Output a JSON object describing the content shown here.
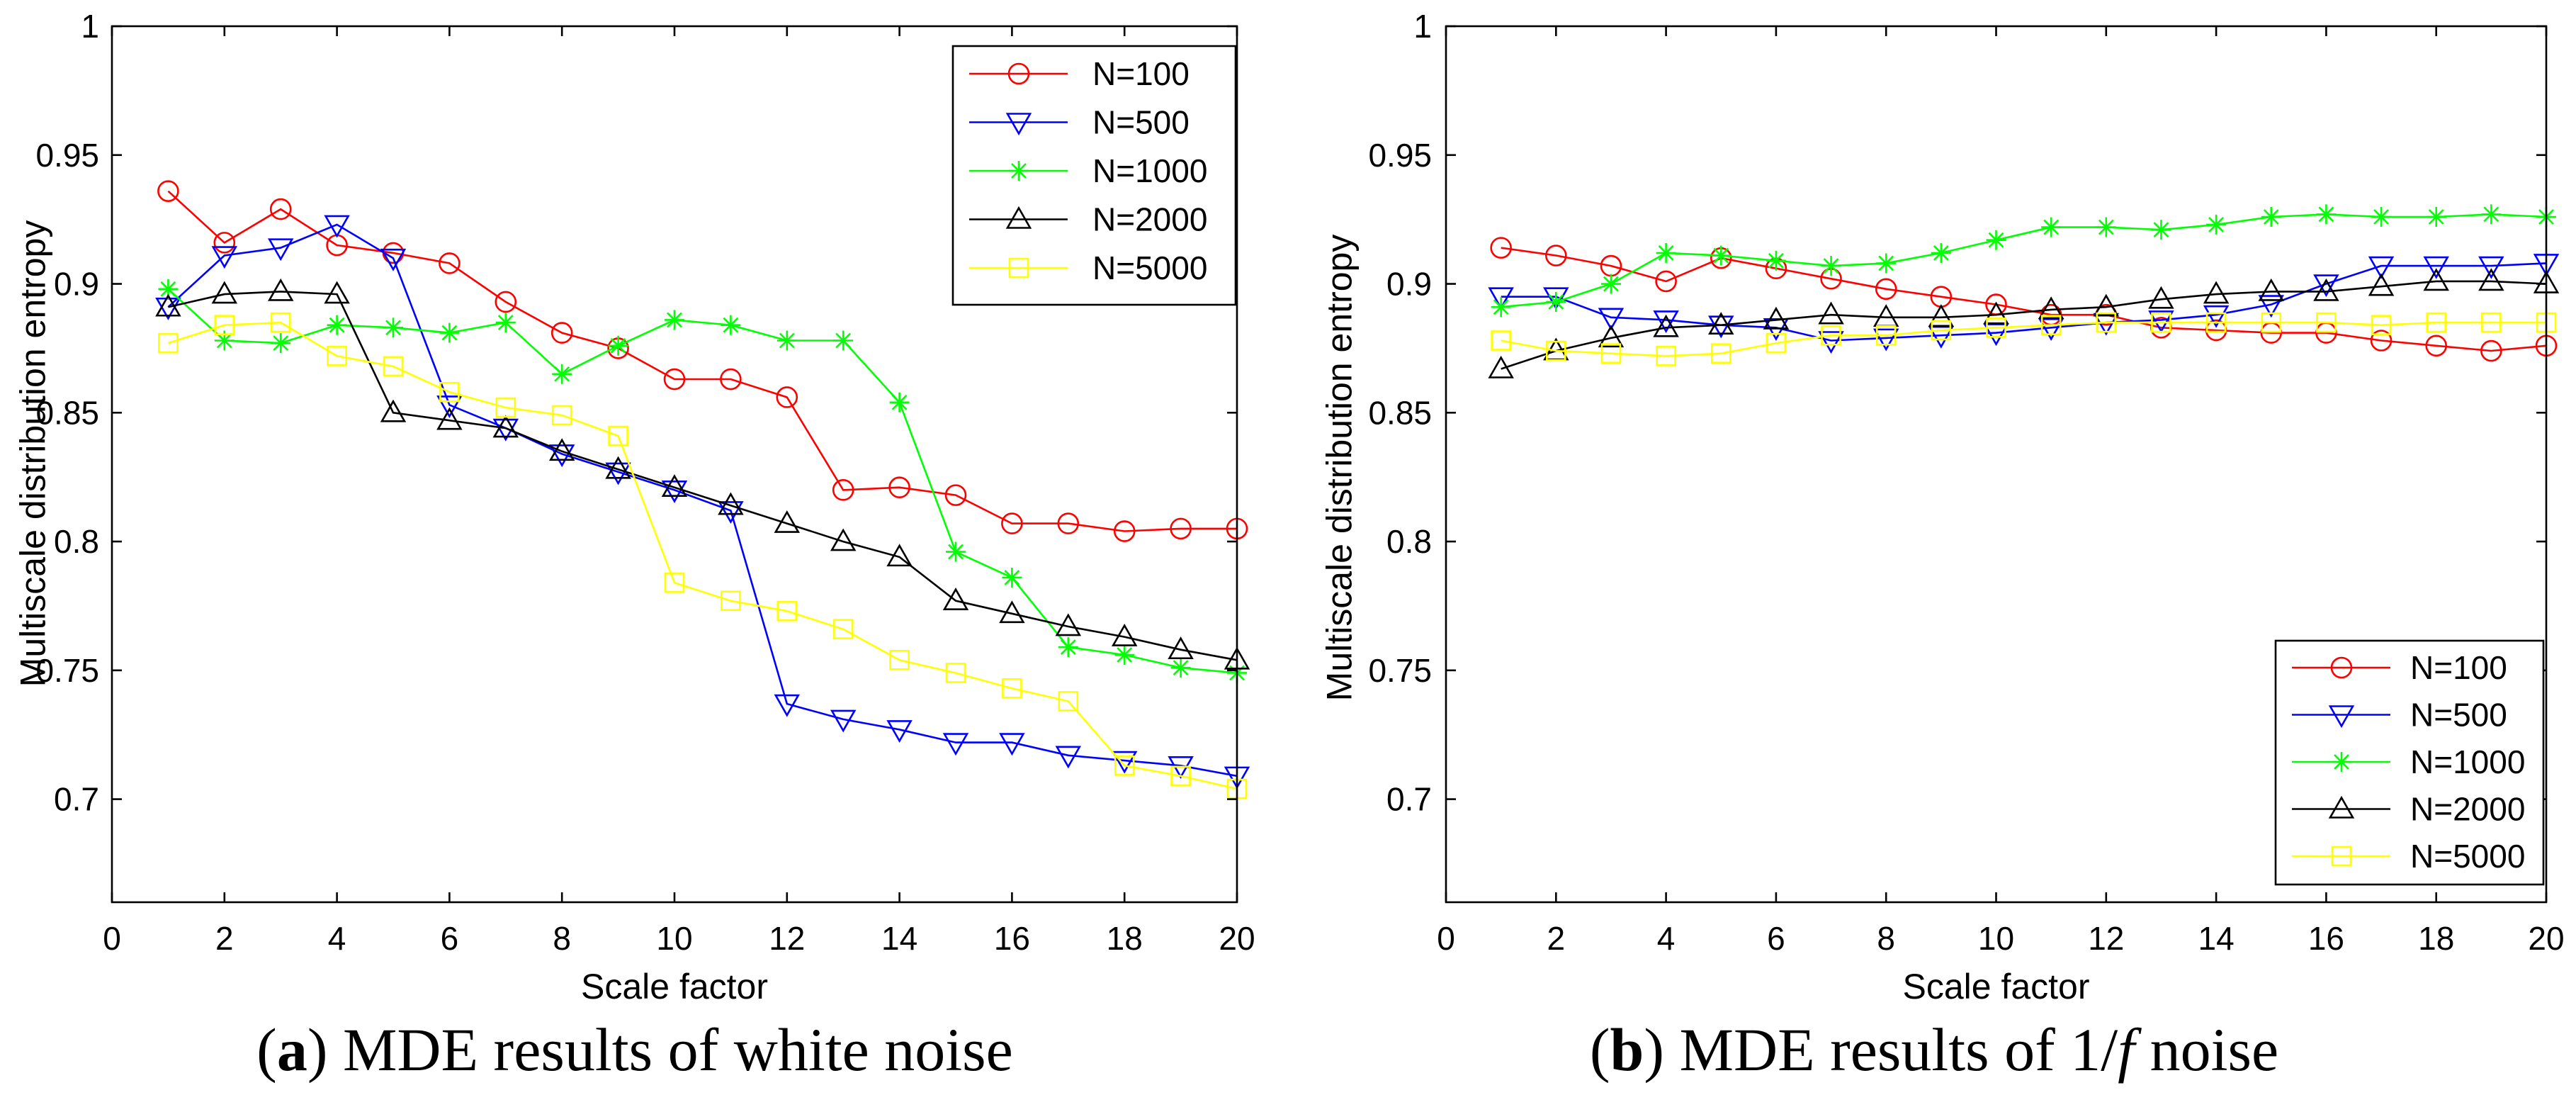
{
  "chart_data": [
    {
      "type": "line",
      "xlabel": "Scale factor",
      "ylabel": "Multiscale distribution entropy",
      "xlim": [
        0,
        20
      ],
      "ylim": [
        0.66,
        1
      ],
      "xticks": [
        0,
        2,
        4,
        6,
        8,
        10,
        12,
        14,
        16,
        18,
        20
      ],
      "xtick_labels": [
        "0",
        "2",
        "4",
        "6",
        "8",
        "10",
        "12",
        "14",
        "16",
        "18",
        "20"
      ],
      "yticks": [
        0.7,
        0.75,
        0.8,
        0.85,
        0.9,
        0.95,
        1
      ],
      "ytick_labels": [
        "0.7",
        "0.75",
        "0.8",
        "0.85",
        "0.9",
        "0.95",
        "1"
      ],
      "grid": false,
      "legend_position": "top-right",
      "x": [
        1,
        2,
        3,
        4,
        5,
        6,
        7,
        8,
        9,
        10,
        11,
        12,
        13,
        14,
        15,
        16,
        17,
        18,
        19,
        20
      ],
      "series": [
        {
          "name": "N=100",
          "color": "#ff0000",
          "marker": "circle",
          "values": [
            0.936,
            0.916,
            0.929,
            0.915,
            0.912,
            0.908,
            0.893,
            0.881,
            0.875,
            0.863,
            0.863,
            0.856,
            0.82,
            0.821,
            0.818,
            0.807,
            0.807,
            0.804,
            0.805,
            0.805
          ]
        },
        {
          "name": "N=500",
          "color": "#0000ff",
          "marker": "triangle-down",
          "values": [
            0.891,
            0.911,
            0.914,
            0.923,
            0.91,
            0.853,
            0.844,
            0.834,
            0.827,
            0.82,
            0.812,
            0.737,
            0.731,
            0.727,
            0.722,
            0.722,
            0.717,
            0.715,
            0.713,
            0.709
          ]
        },
        {
          "name": "N=1000",
          "color": "#00ff00",
          "marker": "asterisk",
          "values": [
            0.898,
            0.878,
            0.877,
            0.884,
            0.883,
            0.881,
            0.885,
            0.865,
            0.876,
            0.886,
            0.884,
            0.878,
            0.878,
            0.854,
            0.796,
            0.786,
            0.759,
            0.756,
            0.751,
            0.749
          ]
        },
        {
          "name": "N=2000",
          "color": "#000000",
          "marker": "triangle-up",
          "values": [
            0.891,
            0.896,
            0.897,
            0.896,
            0.85,
            0.847,
            0.844,
            0.835,
            0.828,
            0.821,
            0.814,
            0.807,
            0.8,
            0.794,
            0.777,
            0.772,
            0.767,
            0.763,
            0.758,
            0.754
          ]
        },
        {
          "name": "N=5000",
          "color": "#ffff00",
          "marker": "square",
          "values": [
            0.877,
            0.884,
            0.885,
            0.872,
            0.868,
            0.858,
            0.852,
            0.849,
            0.841,
            0.784,
            0.777,
            0.773,
            0.766,
            0.754,
            0.749,
            0.743,
            0.738,
            0.713,
            0.709,
            0.704
          ]
        }
      ]
    },
    {
      "type": "line",
      "xlabel": "Scale factor",
      "ylabel": "Multiscale distribution entropy",
      "xlim": [
        0,
        20
      ],
      "ylim": [
        0.66,
        1
      ],
      "xticks": [
        0,
        2,
        4,
        6,
        8,
        10,
        12,
        14,
        16,
        18,
        20
      ],
      "xtick_labels": [
        "0",
        "2",
        "4",
        "6",
        "8",
        "10",
        "12",
        "14",
        "16",
        "18",
        "20"
      ],
      "yticks": [
        0.7,
        0.75,
        0.8,
        0.85,
        0.9,
        0.95,
        1
      ],
      "ytick_labels": [
        "0.7",
        "0.75",
        "0.8",
        "0.85",
        "0.9",
        "0.95",
        "1"
      ],
      "grid": false,
      "legend_position": "bottom-right",
      "x": [
        1,
        2,
        3,
        4,
        5,
        6,
        7,
        8,
        9,
        10,
        11,
        12,
        13,
        14,
        15,
        16,
        17,
        18,
        19,
        20
      ],
      "series": [
        {
          "name": "N=100",
          "color": "#ff0000",
          "marker": "circle",
          "values": [
            0.914,
            0.911,
            0.907,
            0.901,
            0.91,
            0.906,
            0.902,
            0.898,
            0.895,
            0.892,
            0.888,
            0.888,
            0.883,
            0.882,
            0.881,
            0.881,
            0.878,
            0.876,
            0.874,
            0.876
          ]
        },
        {
          "name": "N=500",
          "color": "#0000ff",
          "marker": "triangle-down",
          "values": [
            0.895,
            0.895,
            0.887,
            0.886,
            0.884,
            0.883,
            0.878,
            0.879,
            0.88,
            0.881,
            0.883,
            0.885,
            0.886,
            0.888,
            0.892,
            0.9,
            0.907,
            0.907,
            0.907,
            0.908
          ]
        },
        {
          "name": "N=1000",
          "color": "#00ff00",
          "marker": "asterisk",
          "values": [
            0.891,
            0.893,
            0.9,
            0.912,
            0.911,
            0.909,
            0.907,
            0.908,
            0.912,
            0.917,
            0.922,
            0.922,
            0.921,
            0.923,
            0.926,
            0.927,
            0.926,
            0.926,
            0.927,
            0.926
          ]
        },
        {
          "name": "N=2000",
          "color": "#000000",
          "marker": "triangle-up",
          "values": [
            0.867,
            0.874,
            0.879,
            0.883,
            0.884,
            0.886,
            0.888,
            0.887,
            0.887,
            0.888,
            0.89,
            0.891,
            0.894,
            0.896,
            0.897,
            0.897,
            0.899,
            0.901,
            0.901,
            0.9
          ]
        },
        {
          "name": "N=5000",
          "color": "#ffff00",
          "marker": "square",
          "values": [
            0.878,
            0.874,
            0.873,
            0.872,
            0.873,
            0.877,
            0.88,
            0.88,
            0.882,
            0.883,
            0.884,
            0.885,
            0.885,
            0.885,
            0.885,
            0.885,
            0.884,
            0.885,
            0.885,
            0.885
          ]
        }
      ]
    }
  ],
  "captions": [
    {
      "open": "(",
      "label": "a",
      "text": ") MDE results of white noise"
    },
    {
      "open": "(",
      "label": "b",
      "text": ") MDE results of 1/",
      "italic": "f",
      "after": " noise"
    }
  ]
}
